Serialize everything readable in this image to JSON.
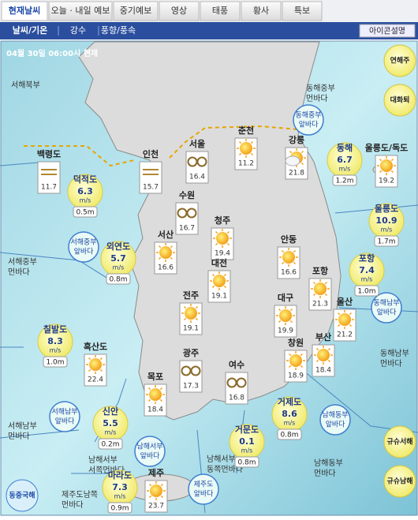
{
  "tabs": [
    "현재날씨",
    "오늘 · 내일 예보",
    "중기예보",
    "영상",
    "태풍",
    "황사",
    "특보"
  ],
  "subtabs": [
    "날씨/기온",
    "강수",
    "풍향/풍속"
  ],
  "icon_button": "아이콘설명",
  "timestamp": "04월 30일 06:00시 현재",
  "wind_unit": "m/s",
  "land_stations": [
    {
      "name": "서울",
      "temp": "16.4",
      "icon": "fog"
    },
    {
      "name": "춘천",
      "temp": "11.2",
      "icon": "sun"
    },
    {
      "name": "강릉",
      "temp": "21.8",
      "icon": "cloudy"
    },
    {
      "name": "인천",
      "temp": "15.7",
      "icon": "mist"
    },
    {
      "name": "수원",
      "temp": "16.7",
      "icon": "fog"
    },
    {
      "name": "청주",
      "temp": "19.4",
      "icon": "sun"
    },
    {
      "name": "서산",
      "temp": "16.6",
      "icon": "sun"
    },
    {
      "name": "대전",
      "temp": "19.1",
      "icon": "sun"
    },
    {
      "name": "안동",
      "temp": "16.6",
      "icon": "sun"
    },
    {
      "name": "포항",
      "temp": "21.3",
      "icon": "sun"
    },
    {
      "name": "전주",
      "temp": "19.1",
      "icon": "sun"
    },
    {
      "name": "대구",
      "temp": "19.9",
      "icon": "sun"
    },
    {
      "name": "울산",
      "temp": "21.2",
      "icon": "sun"
    },
    {
      "name": "광주",
      "temp": "17.3",
      "icon": "fog"
    },
    {
      "name": "창원",
      "temp": "18.9",
      "icon": "sun"
    },
    {
      "name": "부산",
      "temp": "18.4",
      "icon": "sun"
    },
    {
      "name": "목포",
      "temp": "18.4",
      "icon": "sun"
    },
    {
      "name": "여수",
      "temp": "16.8",
      "icon": "fog"
    },
    {
      "name": "제주",
      "temp": "23.7",
      "icon": "sun"
    },
    {
      "name": "백령도",
      "temp": "11.7",
      "icon": "mist"
    },
    {
      "name": "흑산도",
      "temp": "22.4",
      "icon": "sun"
    },
    {
      "name": "울릉도/독도",
      "temp": "19.2",
      "icon": "sun"
    }
  ],
  "sea_stations": [
    {
      "name": "덕적도",
      "wind": "6.3",
      "wave": "0.5m"
    },
    {
      "name": "외연도",
      "wind": "5.7",
      "wave": "0.8m"
    },
    {
      "name": "칠발도",
      "wind": "8.3",
      "wave": "1.0m"
    },
    {
      "name": "신안",
      "wind": "5.5",
      "wave": "0.2m"
    },
    {
      "name": "마라도",
      "wind": "7.3",
      "wave": "0.9m"
    },
    {
      "name": "거문도",
      "wind": "0.1",
      "wave": "0.8m"
    },
    {
      "name": "거제도",
      "wind": "8.6",
      "wave": "0.8m"
    },
    {
      "name": "포항",
      "wind": "7.4",
      "wave": "1.0m"
    },
    {
      "name": "울릉도",
      "wind": "10.9",
      "wave": "1.7m"
    },
    {
      "name": "동해",
      "wind": "6.7",
      "wave": "1.2m"
    }
  ],
  "near_seas": [
    [
      "서해중부",
      "앞바다"
    ],
    [
      "서해남부",
      "앞바다"
    ],
    [
      "동해중부",
      "앞바다"
    ],
    [
      "동해남부",
      "앞바다"
    ],
    [
      "남해서부",
      "앞바다"
    ],
    [
      "남해동부",
      "앞바다"
    ],
    [
      "제주도",
      "앞바다"
    ]
  ],
  "far_seas": [
    [
      "서해북부"
    ],
    [
      "서해중부",
      "먼바다"
    ],
    [
      "서해남부",
      "먼바다"
    ],
    [
      "동해중부",
      "먼바다"
    ],
    [
      "동해남부",
      "먼바다"
    ],
    [
      "남해서부",
      "동쪽먼바다"
    ],
    [
      "남해서부",
      "서쪽먼바다"
    ],
    [
      "남해동부",
      "먼바다"
    ],
    [
      "제주도남쪽",
      "먼바다"
    ]
  ],
  "side_buttons": [
    "연해주",
    "대화퇴",
    "규슈서해",
    "규슈남해",
    "동중국해"
  ]
}
